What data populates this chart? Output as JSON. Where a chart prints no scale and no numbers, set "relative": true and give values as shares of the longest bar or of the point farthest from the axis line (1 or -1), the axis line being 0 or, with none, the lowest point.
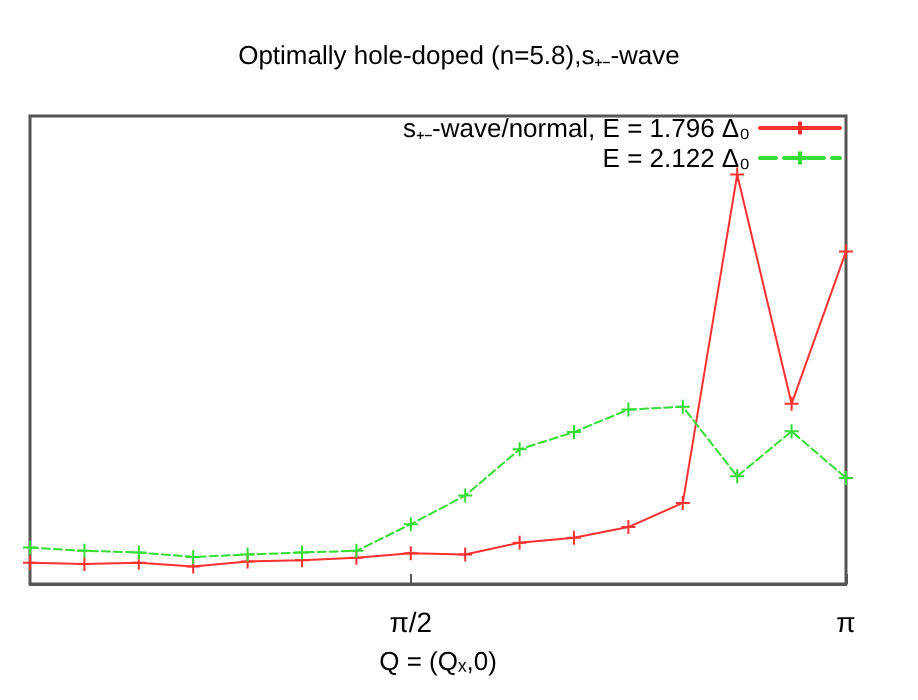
{
  "chart_data": {
    "type": "line",
    "title": "Optimally hole-doped (n=5.8),s₊₋-wave",
    "xlabel": "Q = (Qₓ,0)",
    "relative": true,
    "x": [
      0.1963,
      0.3927,
      0.589,
      0.7854,
      0.9817,
      1.1781,
      1.3744,
      1.5708,
      1.7671,
      1.9635,
      2.1598,
      2.3562,
      2.5525,
      2.7489,
      2.9452,
      3.1416
    ],
    "xlim": [
      0.1963,
      3.1416
    ],
    "xticks": [
      {
        "value": 1.5708,
        "label": "π/2"
      },
      {
        "value": 3.1416,
        "label": "π"
      }
    ],
    "series": [
      {
        "name": "s₊₋-wave/normal, E = 1.796 Δ₀",
        "color": "#ff3030",
        "marker": "cross",
        "line_style": "solid",
        "values": [
          0.052,
          0.049,
          0.052,
          0.043,
          0.055,
          0.058,
          0.064,
          0.075,
          0.072,
          0.101,
          0.113,
          0.139,
          0.198,
          1,
          0.44,
          0.812
        ]
      },
      {
        "name": "E = 2.122 Δ₀",
        "color": "#33dd33",
        "marker": "cross",
        "line_style": "dashed",
        "values": [
          0.089,
          0.081,
          0.077,
          0.066,
          0.072,
          0.077,
          0.081,
          0.146,
          0.216,
          0.329,
          0.371,
          0.426,
          0.433,
          0.263,
          0.373,
          0.259
        ]
      }
    ],
    "legend": "top right",
    "grid": false
  }
}
